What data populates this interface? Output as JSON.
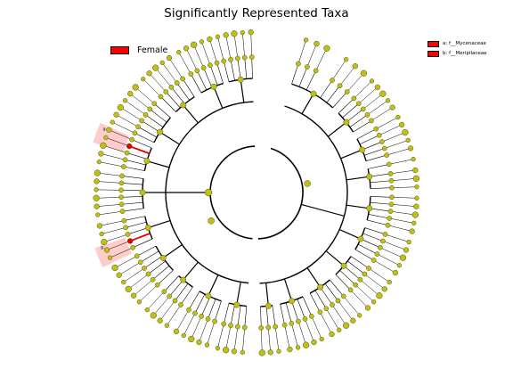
{
  "title": "Significantly Represented Taxa",
  "class_legend": {
    "label": "Female",
    "color": "#ff0000"
  },
  "taxa_legend": [
    {
      "key": "a",
      "name": "f__Mycenaceae"
    },
    {
      "key": "b",
      "name": "f__Meripilaceae"
    }
  ],
  "highlights": [
    {
      "key": "a",
      "color": "#ff0000"
    },
    {
      "key": "b",
      "color": "#ff0000"
    }
  ],
  "colors": {
    "node": "#bfbf1b",
    "node_stroke": "#555500",
    "highlight_node": "#e60000",
    "clade_shade": "#ff9999",
    "branch": "#000000"
  }
}
